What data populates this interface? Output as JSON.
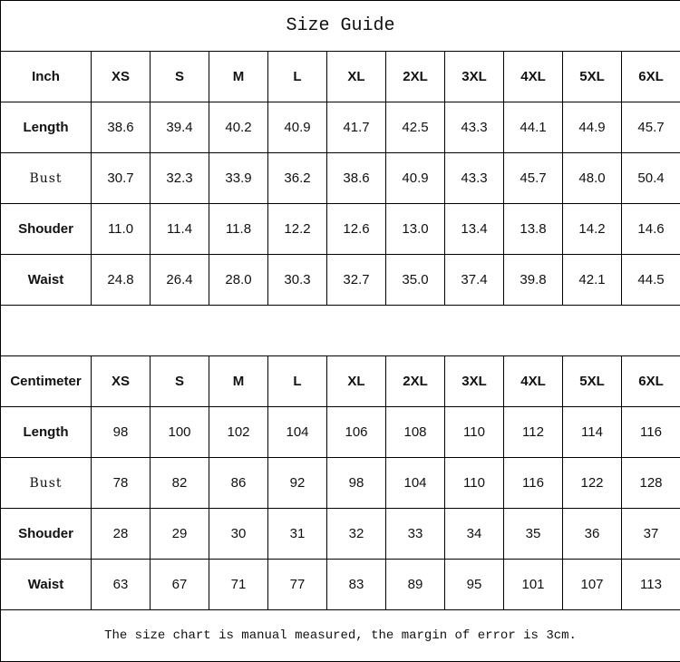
{
  "title": "Size Guide",
  "sizes": [
    "XS",
    "S",
    "M",
    "L",
    "XL",
    "2XL",
    "3XL",
    "4XL",
    "5XL",
    "6XL"
  ],
  "inch": {
    "unit_label": "Inch",
    "rows": [
      {
        "label": "Length",
        "values": [
          "38.6",
          "39.4",
          "40.2",
          "40.9",
          "41.7",
          "42.5",
          "43.3",
          "44.1",
          "44.9",
          "45.7"
        ]
      },
      {
        "label": "Bust",
        "values": [
          "30.7",
          "32.3",
          "33.9",
          "36.2",
          "38.6",
          "40.9",
          "43.3",
          "45.7",
          "48.0",
          "50.4"
        ]
      },
      {
        "label": "Shouder",
        "values": [
          "11.0",
          "11.4",
          "11.8",
          "12.2",
          "12.6",
          "13.0",
          "13.4",
          "13.8",
          "14.2",
          "14.6"
        ]
      },
      {
        "label": "Waist",
        "values": [
          "24.8",
          "26.4",
          "28.0",
          "30.3",
          "32.7",
          "35.0",
          "37.4",
          "39.8",
          "42.1",
          "44.5"
        ]
      }
    ]
  },
  "centimeter": {
    "unit_label": "Centimeter",
    "rows": [
      {
        "label": "Length",
        "values": [
          "98",
          "100",
          "102",
          "104",
          "106",
          "108",
          "110",
          "112",
          "114",
          "116"
        ]
      },
      {
        "label": "Bust",
        "values": [
          "78",
          "82",
          "86",
          "92",
          "98",
          "104",
          "110",
          "116",
          "122",
          "128"
        ]
      },
      {
        "label": "Shouder",
        "values": [
          "28",
          "29",
          "30",
          "31",
          "32",
          "33",
          "34",
          "35",
          "36",
          "37"
        ]
      },
      {
        "label": "Waist",
        "values": [
          "63",
          "67",
          "71",
          "77",
          "83",
          "89",
          "95",
          "101",
          "107",
          "113"
        ]
      }
    ]
  },
  "note": "The size chart is manual measured, the margin of error is 3cm."
}
